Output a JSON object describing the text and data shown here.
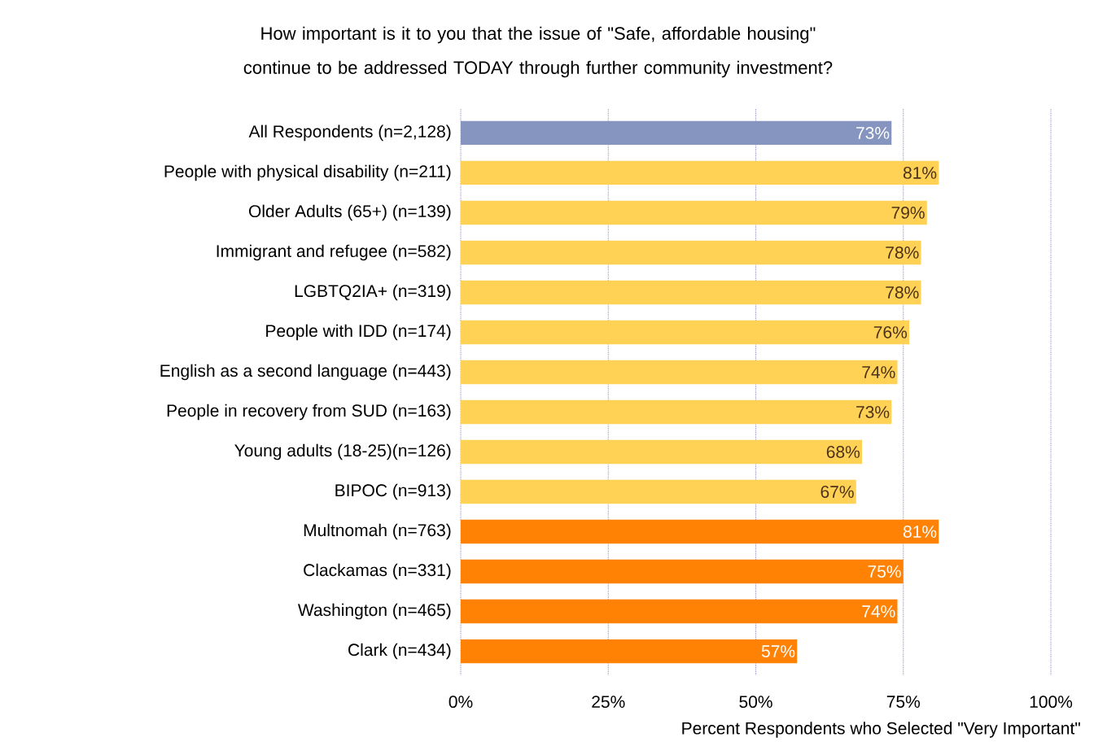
{
  "chart_data": {
    "type": "bar",
    "orientation": "horizontal",
    "title": "How important is it to you that the issue of \"Safe, affordable housing\" continue to be addressed TODAY through further community investment?",
    "xlabel": "Percent Respondents who Selected \"Very Important\"",
    "categories": [
      "All Respondents (n=2,128)",
      "People with physical disability (n=211)",
      "Older Adults (65+) (n=139)",
      "Immigrant and refugee (n=582)",
      "LGBTQ2IA+ (n=319)",
      "People with IDD (n=174)",
      "English as a second language (n=443)",
      "People in recovery from SUD (n=163)",
      "Young adults (18-25)(n=126)",
      "BIPOC (n=913)",
      "Multnomah (n=763)",
      "Clackamas (n=331)",
      "Washington (n=465)",
      "Clark (n=434)"
    ],
    "values": [
      73,
      81,
      79,
      78,
      78,
      76,
      74,
      73,
      68,
      67,
      81,
      75,
      74,
      57
    ],
    "value_labels": [
      "73%",
      "81%",
      "79%",
      "78%",
      "78%",
      "76%",
      "74%",
      "73%",
      "68%",
      "67%",
      "81%",
      "75%",
      "74%",
      "57%"
    ],
    "colors": [
      "#8595bf",
      "#ffd155",
      "#ffd155",
      "#ffd155",
      "#ffd155",
      "#ffd155",
      "#ffd155",
      "#ffd155",
      "#ffd155",
      "#ffd155",
      "#ff8205",
      "#ff8205",
      "#ff8205",
      "#ff8205"
    ],
    "xlim": [
      0,
      100
    ],
    "xticks": [
      {
        "value": 0,
        "label": "0%"
      },
      {
        "value": 25,
        "label": "25%"
      },
      {
        "value": 50,
        "label": "50%"
      },
      {
        "value": 75,
        "label": "75%"
      },
      {
        "value": 100,
        "label": "100%"
      }
    ],
    "grid": "x"
  }
}
